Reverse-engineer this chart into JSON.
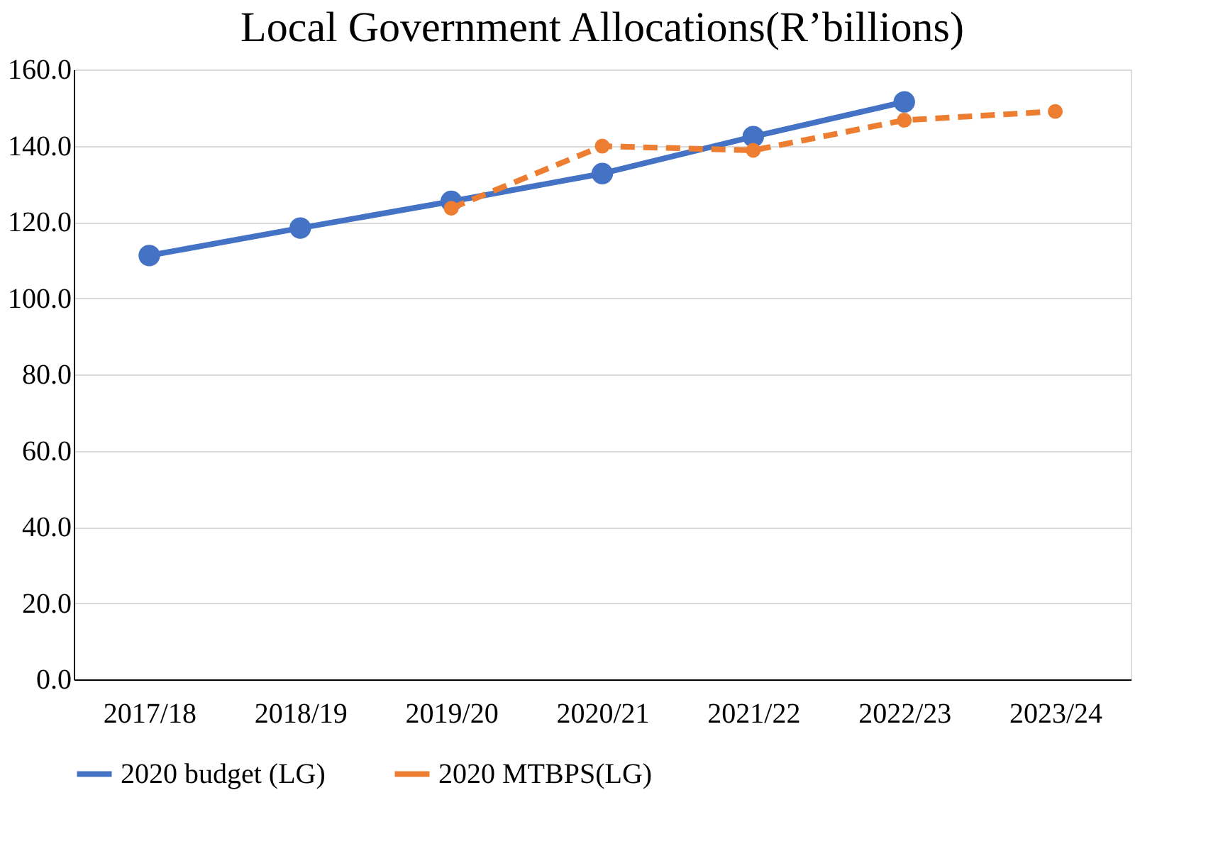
{
  "chart_data": {
    "type": "line",
    "title": "Local Government Allocations(R’billions)",
    "categories": [
      "2017/18",
      "2018/19",
      "2019/20",
      "2020/21",
      "2021/22",
      "2022/23",
      "2023/24"
    ],
    "series": [
      {
        "name": "2020 budget (LG)",
        "color": "#4472c4",
        "line_style": "solid",
        "marker": "circle",
        "values": [
          111.2,
          118.4,
          125.4,
          132.7,
          142.4,
          151.5,
          null
        ]
      },
      {
        "name": "2020 MTBPS(LG)",
        "color": "#ed7d31",
        "line_style": "dashed",
        "marker": "circle",
        "values": [
          null,
          null,
          123.6,
          139.9,
          138.8,
          146.7,
          149.0
        ]
      }
    ],
    "ylim": [
      0,
      160
    ],
    "yticks": [
      {
        "value": 0,
        "label": "0.0"
      },
      {
        "value": 20,
        "label": "20.0"
      },
      {
        "value": 40,
        "label": "40.0"
      },
      {
        "value": 60,
        "label": "60.0"
      },
      {
        "value": 80,
        "label": "80.0"
      },
      {
        "value": 100,
        "label": "100.0"
      },
      {
        "value": 120,
        "label": "120.0"
      },
      {
        "value": 140,
        "label": "140.0"
      },
      {
        "value": 160,
        "label": "160.0"
      }
    ],
    "grid": "y",
    "legend": "bottom"
  }
}
